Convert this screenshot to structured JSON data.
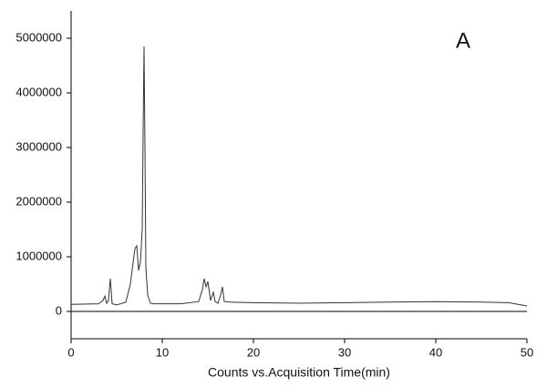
{
  "chart_data": {
    "type": "line",
    "annotation": "A",
    "x_label": "Counts vs.Acquisition Time(min)",
    "x": [
      0,
      3,
      3.5,
      3.7,
      3.9,
      4.1,
      4.3,
      4.5,
      5,
      6,
      6.5,
      7,
      7.2,
      7.4,
      7.6,
      7.8,
      7.9,
      8.0,
      8.1,
      8.2,
      8.4,
      8.7,
      9,
      12,
      14,
      14.4,
      14.6,
      14.8,
      15.0,
      15.3,
      15.6,
      15.8,
      16.1,
      16.4,
      16.6,
      16.8,
      17.5,
      20,
      25,
      30,
      35,
      40,
      45,
      48,
      50
    ],
    "values": [
      130000,
      140000,
      200000,
      280000,
      150000,
      200000,
      600000,
      140000,
      120000,
      170000,
      500000,
      1150000,
      1200000,
      750000,
      900000,
      1500000,
      3300000,
      4850000,
      3000000,
      800000,
      300000,
      150000,
      140000,
      140000,
      180000,
      400000,
      600000,
      450000,
      550000,
      200000,
      350000,
      180000,
      150000,
      300000,
      450000,
      180000,
      170000,
      160000,
      150000,
      160000,
      170000,
      180000,
      170000,
      160000,
      100000
    ],
    "color": "#333333",
    "xlim": [
      0,
      50
    ],
    "xticks": [
      0,
      10,
      20,
      30,
      40,
      50
    ],
    "ylim": [
      -500000,
      5500000
    ],
    "yticks": [
      0,
      1000000,
      2000000,
      3000000,
      4000000,
      5000000
    ],
    "zero_line": true
  }
}
